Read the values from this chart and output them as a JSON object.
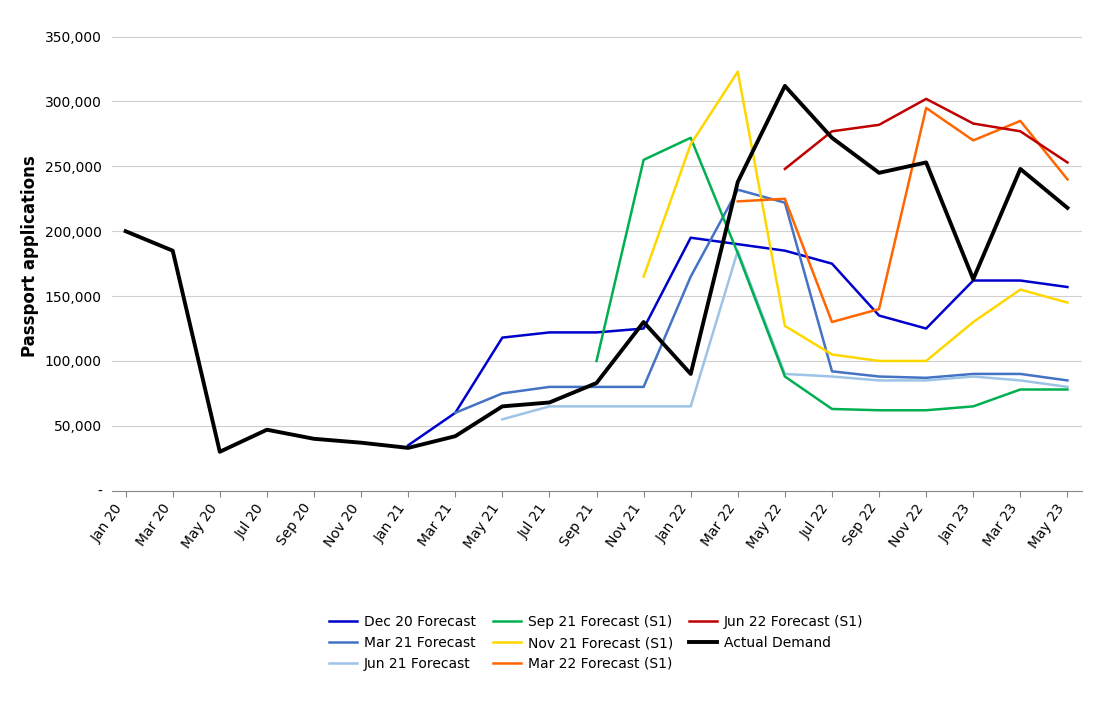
{
  "title": "",
  "ylabel": "Passport applications",
  "background_color": "#ffffff",
  "x_labels": [
    "Jan 20",
    "Mar 20",
    "May 20",
    "Jul 20",
    "Sep 20",
    "Nov 20",
    "Jan 21",
    "Mar 21",
    "May 21",
    "Jul 21",
    "Sep 21",
    "Nov 21",
    "Jan 22",
    "Mar 22",
    "May 22",
    "Jul 22",
    "Sep 22",
    "Nov 22",
    "Jan 23",
    "Mar 23",
    "May 23"
  ],
  "series": {
    "Actual Demand": {
      "color": "#000000",
      "linewidth": 2.8,
      "data": {
        "Jan 20": 200000,
        "Mar 20": 185000,
        "May 20": 30000,
        "Jul 20": 47000,
        "Sep 20": 40000,
        "Nov 20": 37000,
        "Jan 21": 33000,
        "Mar 21": 42000,
        "May 21": 65000,
        "Jul 21": 68000,
        "Sep 21": 83000,
        "Nov 21": 130000,
        "Jan 22": 90000,
        "Mar 22": 238000,
        "May 22": 312000,
        "Jul 22": 272000,
        "Sep 22": 245000,
        "Nov 22": 253000,
        "Jan 23": 163000,
        "Mar 23": 248000,
        "May 23": 218000
      }
    },
    "Dec 20 Forecast": {
      "color": "#0000CC",
      "linewidth": 1.8,
      "data": {
        "Jan 21": 35000,
        "Mar 21": 60000,
        "May 21": 118000,
        "Jul 21": 122000,
        "Sep 21": 122000,
        "Nov 21": 125000,
        "Jan 22": 195000,
        "Mar 22": 190000,
        "May 22": 185000,
        "Jul 22": 175000,
        "Sep 22": 135000,
        "Nov 22": 125000,
        "Jan 23": 162000,
        "Mar 23": 162000,
        "May 23": 157000
      }
    },
    "Mar 21 Forecast": {
      "color": "#4472C4",
      "linewidth": 1.8,
      "data": {
        "Mar 21": 60000,
        "May 21": 75000,
        "Jul 21": 80000,
        "Sep 21": 80000,
        "Nov 21": 80000,
        "Jan 22": 165000,
        "Mar 22": 232000,
        "May 22": 222000,
        "Jul 22": 92000,
        "Sep 22": 88000,
        "Nov 22": 87000,
        "Jan 23": 90000,
        "Mar 23": 90000,
        "May 23": 85000
      }
    },
    "Jun 21 Forecast": {
      "color": "#9DC3E6",
      "linewidth": 1.8,
      "data": {
        "May 21": 55000,
        "Jul 21": 65000,
        "Sep 21": 65000,
        "Nov 21": 65000,
        "Jan 22": 65000,
        "Mar 22": 185000,
        "May 22": 90000,
        "Jul 22": 88000,
        "Sep 22": 85000,
        "Nov 22": 85000,
        "Jan 23": 88000,
        "Mar 23": 85000,
        "May 23": 80000
      }
    },
    "Sep 21 Forecast (S1)": {
      "color": "#00B050",
      "linewidth": 1.8,
      "data": {
        "Sep 21": 100000,
        "Nov 21": 255000,
        "Jan 22": 272000,
        "Mar 22": 183000,
        "May 22": 88000,
        "Jul 22": 63000,
        "Sep 22": 62000,
        "Nov 22": 62000,
        "Jan 23": 65000,
        "Mar 23": 78000,
        "May 23": 78000
      }
    },
    "Nov 21 Forecast (S1)": {
      "color": "#FFD700",
      "linewidth": 1.8,
      "data": {
        "Nov 21": 165000,
        "Jan 22": 267000,
        "Mar 22": 323000,
        "May 22": 127000,
        "Jul 22": 105000,
        "Sep 22": 100000,
        "Nov 22": 100000,
        "Jan 23": 130000,
        "Mar 23": 155000,
        "May 23": 145000
      }
    },
    "Mar 22 Forecast (S1)": {
      "color": "#FF6600",
      "linewidth": 1.8,
      "data": {
        "Mar 22": 223000,
        "May 22": 225000,
        "Jul 22": 130000,
        "Sep 22": 140000,
        "Nov 22": 295000,
        "Jan 23": 270000,
        "Mar 23": 285000,
        "May 23": 240000
      }
    },
    "Jun 22 Forecast (S1)": {
      "color": "#C00000",
      "linewidth": 1.8,
      "data": {
        "May 22": 248000,
        "Jul 22": 277000,
        "Sep 22": 282000,
        "Nov 22": 302000,
        "Jan 23": 283000,
        "Mar 23": 277000,
        "May 23": 253000
      }
    }
  },
  "ylim": [
    0,
    362000
  ],
  "yticks": [
    0,
    50000,
    100000,
    150000,
    200000,
    250000,
    300000,
    350000
  ],
  "ytick_labels": [
    "-",
    "50,000",
    "100,000",
    "150,000",
    "200,000",
    "250,000",
    "300,000",
    "350,000"
  ],
  "legend_order": [
    "Dec 20 Forecast",
    "Mar 21 Forecast",
    "Jun 21 Forecast",
    "Sep 21 Forecast (S1)",
    "Nov 21 Forecast (S1)",
    "Mar 22 Forecast (S1)",
    "Jun 22 Forecast (S1)",
    "Actual Demand"
  ]
}
